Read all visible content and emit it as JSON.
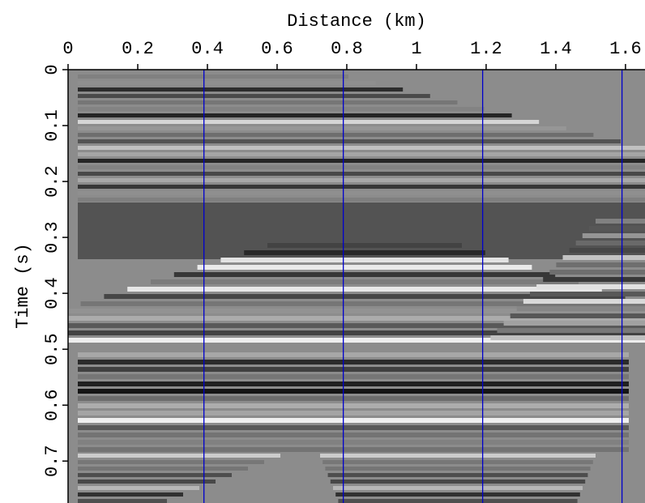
{
  "chart_data": {
    "type": "image",
    "xlabel": "Distance (km)",
    "ylabel": "Time (s)",
    "xlim": [
      0,
      1.656
    ],
    "ylim": [
      0,
      0.775
    ],
    "y_inverted": true,
    "xticks": [
      0,
      0.2,
      0.4,
      0.6,
      0.8,
      1,
      1.2,
      1.4,
      1.6
    ],
    "yticks": [
      0,
      0.1,
      0.2,
      0.3,
      0.4,
      0.5,
      0.6,
      0.7
    ],
    "vlines": [
      0.39,
      0.79,
      1.19,
      1.59
    ],
    "vline_color": "#0000cc",
    "background": "#8c8c8c"
  }
}
